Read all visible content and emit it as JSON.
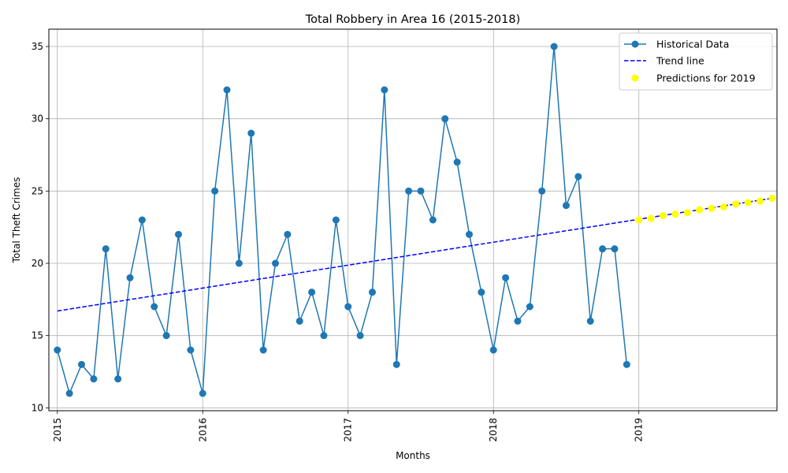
{
  "chart_data": {
    "type": "line",
    "title": "Total Robbery in Area 16 (2015-2018)",
    "xlabel": "Months",
    "ylabel": "Total Theft Crimes",
    "x_ticks": [
      "2015",
      "2016",
      "2017",
      "2018",
      "2019"
    ],
    "y_ticks": [
      "10",
      "15",
      "20",
      "25",
      "30",
      "35"
    ],
    "xlim": [
      "2014-12",
      "2019-12"
    ],
    "ylim": [
      9.8,
      36.2
    ],
    "grid": true,
    "legend_position": "top-right",
    "series": [
      {
        "name": "Historical Data",
        "style": "line-with-markers",
        "color": "#1f77b4",
        "x": [
          "2015-01",
          "2015-02",
          "2015-03",
          "2015-04",
          "2015-05",
          "2015-06",
          "2015-07",
          "2015-08",
          "2015-09",
          "2015-10",
          "2015-11",
          "2015-12",
          "2016-01",
          "2016-02",
          "2016-03",
          "2016-04",
          "2016-05",
          "2016-06",
          "2016-07",
          "2016-08",
          "2016-09",
          "2016-10",
          "2016-11",
          "2016-12",
          "2017-01",
          "2017-02",
          "2017-03",
          "2017-04",
          "2017-05",
          "2017-06",
          "2017-07",
          "2017-08",
          "2017-09",
          "2017-10",
          "2017-11",
          "2017-12",
          "2018-01",
          "2018-02",
          "2018-03",
          "2018-04",
          "2018-05",
          "2018-06",
          "2018-07",
          "2018-08",
          "2018-09",
          "2018-10",
          "2018-11",
          "2018-12"
        ],
        "values": [
          14,
          11,
          13,
          12,
          21,
          12,
          19,
          23,
          17,
          15,
          22,
          14,
          11,
          25,
          32,
          20,
          29,
          14,
          20,
          22,
          16,
          18,
          15,
          23,
          17,
          15,
          18,
          32,
          13,
          25,
          25,
          23,
          30,
          27,
          22,
          18,
          14,
          19,
          16,
          17,
          25,
          35,
          24,
          26,
          16,
          21,
          21,
          13
        ]
      },
      {
        "name": "Trend line",
        "style": "dashed-line",
        "color": "#0000ff",
        "x": [
          "2015-01",
          "2019-12"
        ],
        "values": [
          16.7,
          24.5
        ]
      },
      {
        "name": "Predictions for 2019",
        "style": "scatter",
        "color": "#ffff00",
        "x": [
          "2019-01",
          "2019-02",
          "2019-03",
          "2019-04",
          "2019-05",
          "2019-06",
          "2019-07",
          "2019-08",
          "2019-09",
          "2019-10",
          "2019-11",
          "2019-12"
        ],
        "values": [
          23.0,
          23.1,
          23.3,
          23.4,
          23.5,
          23.7,
          23.8,
          23.9,
          24.1,
          24.2,
          24.3,
          24.5
        ]
      }
    ]
  }
}
